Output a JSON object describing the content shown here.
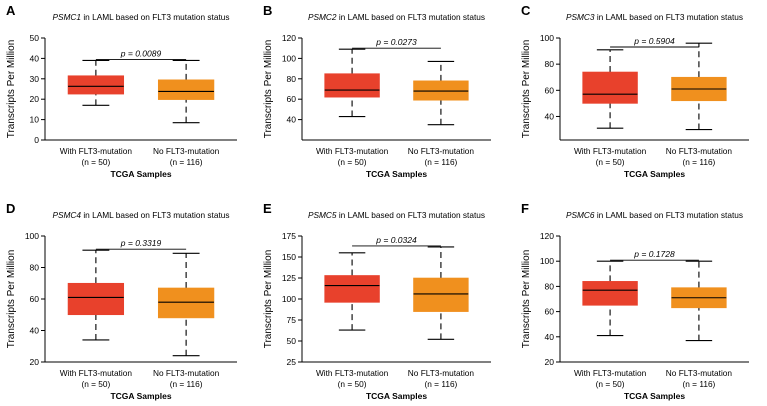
{
  "chart_data": [
    {
      "letter": "A",
      "type": "boxplot",
      "title_gene": "PSMC1",
      "title_rest": " in LAML based on FLT3 mutation status",
      "ylabel": "Transcripts Per Million",
      "xlabel": "TCGA Samples",
      "ylim": [
        0,
        50
      ],
      "yticks": [
        0,
        10,
        20,
        30,
        40,
        50
      ],
      "pvalue": "p = 0.0089",
      "categories": [
        "With FLT3-mutation",
        "No FLT3-mutation"
      ],
      "counts": [
        "(n = 50)",
        "(n = 116)"
      ],
      "colors": [
        "#e8412c",
        "#f0901e"
      ],
      "boxes": [
        {
          "min": 17,
          "q1": 22.5,
          "median": 26.3,
          "q3": 31.5,
          "max": 39
        },
        {
          "min": 8.5,
          "q1": 19.8,
          "median": 23.8,
          "q3": 29.5,
          "max": 39
        }
      ]
    },
    {
      "letter": "B",
      "type": "boxplot",
      "title_gene": "PSMC2",
      "title_rest": " in LAML based on FLT3 mutation status",
      "ylabel": "Transcripts Per Million",
      "xlabel": "TCGA Samples",
      "ylim": [
        20,
        120
      ],
      "yticks": [
        40,
        60,
        80,
        100,
        120
      ],
      "pvalue": "p = 0.0273",
      "categories": [
        "With FLT3-mutation",
        "No FLT3-mutation"
      ],
      "counts": [
        "(n = 50)",
        "(n = 116)"
      ],
      "colors": [
        "#e8412c",
        "#f0901e"
      ],
      "boxes": [
        {
          "min": 43,
          "q1": 62,
          "median": 69,
          "q3": 85,
          "max": 109
        },
        {
          "min": 35,
          "q1": 59,
          "median": 68,
          "q3": 78,
          "max": 97
        }
      ]
    },
    {
      "letter": "C",
      "type": "boxplot",
      "title_gene": "PSMC3",
      "title_rest": " in LAML based on FLT3 mutation status",
      "ylabel": "Transcripts Per Million",
      "xlabel": "TCGA Samples",
      "ylim": [
        22,
        100
      ],
      "yticks": [
        40,
        60,
        80,
        100
      ],
      "pvalue": "p = 0.5904",
      "categories": [
        "With FLT3-mutation",
        "No FLT3-mutation"
      ],
      "counts": [
        "(n = 50)",
        "(n = 116)"
      ],
      "colors": [
        "#e8412c",
        "#f0901e"
      ],
      "boxes": [
        {
          "min": 31,
          "q1": 50,
          "median": 57,
          "q3": 74,
          "max": 91
        },
        {
          "min": 30,
          "q1": 52,
          "median": 61,
          "q3": 70,
          "max": 96
        }
      ]
    },
    {
      "letter": "D",
      "type": "boxplot",
      "title_gene": "PSMC4",
      "title_rest": " in LAML based on FLT3 mutation status",
      "ylabel": "Transcripts Per Million",
      "xlabel": "TCGA Samples",
      "ylim": [
        20,
        100
      ],
      "yticks": [
        20,
        40,
        60,
        80,
        100
      ],
      "pvalue": "p = 0.3319",
      "categories": [
        "With FLT3-mutation",
        "No FLT3-mutation"
      ],
      "counts": [
        "(n = 50)",
        "(n = 116)"
      ],
      "colors": [
        "#e8412c",
        "#f0901e"
      ],
      "boxes": [
        {
          "min": 34,
          "q1": 50,
          "median": 61,
          "q3": 70,
          "max": 91
        },
        {
          "min": 24,
          "q1": 48,
          "median": 58,
          "q3": 67,
          "max": 89
        }
      ]
    },
    {
      "letter": "E",
      "type": "boxplot",
      "title_gene": "PSMC5",
      "title_rest": " in LAML based on FLT3 mutation status",
      "ylabel": "Transcripts Per Million",
      "xlabel": "TCGA Samples",
      "ylim": [
        25,
        175
      ],
      "yticks": [
        25,
        50,
        75,
        100,
        125,
        150,
        175
      ],
      "pvalue": "p = 0.0324",
      "categories": [
        "With FLT3-mutation",
        "No FLT3-mutation"
      ],
      "counts": [
        "(n = 50)",
        "(n = 116)"
      ],
      "colors": [
        "#e8412c",
        "#f0901e"
      ],
      "boxes": [
        {
          "min": 63,
          "q1": 96,
          "median": 116,
          "q3": 128,
          "max": 155
        },
        {
          "min": 52,
          "q1": 85,
          "median": 106,
          "q3": 125,
          "max": 162
        }
      ]
    },
    {
      "letter": "F",
      "type": "boxplot",
      "title_gene": "PSMC6",
      "title_rest": " in LAML based on FLT3 mutation status",
      "ylabel": "Transcripts Per Million",
      "xlabel": "TCGA Samples",
      "ylim": [
        20,
        120
      ],
      "yticks": [
        20,
        40,
        60,
        80,
        100,
        120
      ],
      "pvalue": "p = 0.1728",
      "categories": [
        "With FLT3-mutation",
        "No FLT3-mutation"
      ],
      "counts": [
        "(n = 50)",
        "(n = 116)"
      ],
      "colors": [
        "#e8412c",
        "#f0901e"
      ],
      "boxes": [
        {
          "min": 41,
          "q1": 65,
          "median": 77,
          "q3": 84,
          "max": 100
        },
        {
          "min": 37,
          "q1": 63,
          "median": 71,
          "q3": 79,
          "max": 100
        }
      ]
    }
  ]
}
